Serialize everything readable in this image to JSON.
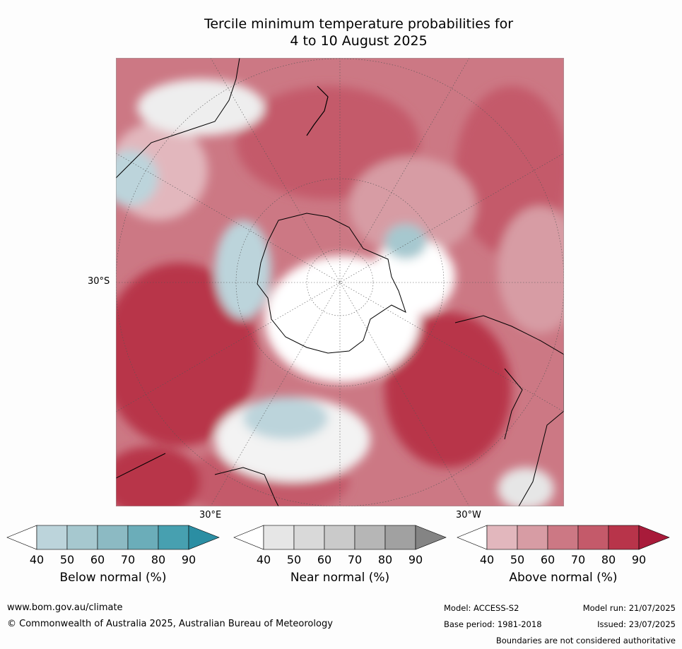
{
  "title": {
    "line1": "Tercile minimum temperature probabilities for",
    "line2": "4 to 10 August 2025"
  },
  "map": {
    "projection": "south polar stereographic",
    "tick_labels": {
      "lat_left": "30°S",
      "lon_bottom_left": "30°E",
      "lon_bottom_right": "30°W"
    }
  },
  "legend": {
    "below": {
      "label": "Below normal (%)",
      "ticks": [
        "40",
        "50",
        "60",
        "70",
        "80",
        "90"
      ],
      "colors": [
        "#ffffff",
        "#bcd4db",
        "#a6c8cf",
        "#8cbac3",
        "#6badb9",
        "#47a0b0",
        "#2b8ea3"
      ]
    },
    "near": {
      "label": "Near normal (%)",
      "ticks": [
        "40",
        "50",
        "60",
        "70",
        "80",
        "90"
      ],
      "colors": [
        "#ffffff",
        "#e6e6e6",
        "#d9d9d9",
        "#cacaca",
        "#b6b6b6",
        "#a1a1a1",
        "#848484"
      ]
    },
    "above": {
      "label": "Above normal (%)",
      "ticks": [
        "40",
        "50",
        "60",
        "70",
        "80",
        "90"
      ],
      "colors": [
        "#ffffff",
        "#e2b7bd",
        "#d79ca4",
        "#cc7884",
        "#c45a6a",
        "#b8344a",
        "#a81b3a"
      ]
    }
  },
  "footer": {
    "url": "www.bom.gov.au/climate",
    "copyright": "© Commonwealth of Australia 2025, Australian Bureau of Meteorology",
    "model": "Model: ACCESS-S2",
    "base_period": "Base period: 1981-2018",
    "model_run": "Model run: 21/07/2025",
    "issued": "Issued: 23/07/2025",
    "disclaimer": "Boundaries are not considered authoritative"
  }
}
